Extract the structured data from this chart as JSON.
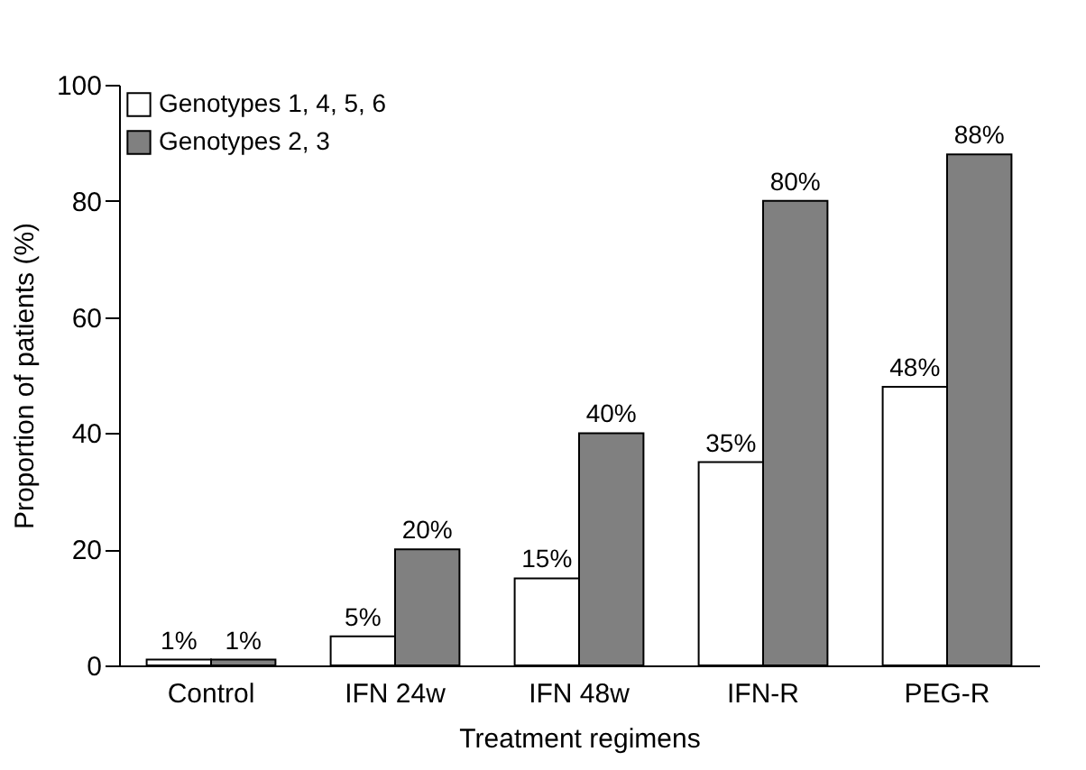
{
  "chart_data": {
    "type": "bar",
    "xlabel": "Treatment regimens",
    "ylabel": "Proportion of patients (%)",
    "categories": [
      "Control",
      "IFN 24w",
      "IFN 48w",
      "IFN-R",
      "PEG-R"
    ],
    "series": [
      {
        "name": "Genotypes 1, 4, 5, 6",
        "color": "#ffffff",
        "values": [
          1,
          5,
          15,
          35,
          48
        ],
        "value_labels": [
          "1%",
          "5%",
          "15%",
          "35%",
          "48%"
        ]
      },
      {
        "name": "Genotypes 2, 3",
        "color": "#808080",
        "values": [
          1,
          20,
          40,
          80,
          88
        ],
        "value_labels": [
          "1%",
          "20%",
          "40%",
          "80%",
          "88%"
        ]
      }
    ],
    "ylim": [
      0,
      100
    ],
    "yticks": [
      0,
      20,
      40,
      60,
      80,
      100
    ],
    "grid": false,
    "legend": "top left"
  }
}
